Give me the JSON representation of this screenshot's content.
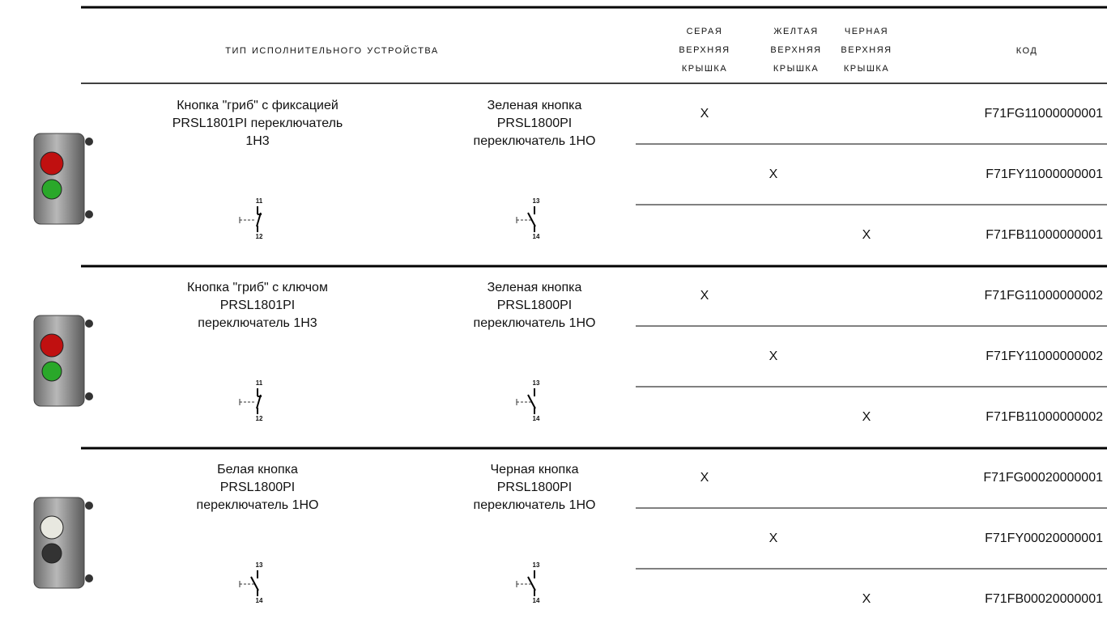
{
  "header": {
    "type": "Тип исполнительного устройства",
    "grey": [
      "Серая",
      "верхняя",
      "крышка"
    ],
    "yellow": [
      "Желтая",
      "верхняя",
      "крышка"
    ],
    "black": [
      "Черная",
      "верхняя",
      "крышка"
    ],
    "code": "Код"
  },
  "groups": [
    {
      "left": {
        "lines": [
          "Кнопка \"гриб\" с фиксацией",
          "PRSL1801PI переключатель",
          "1Н3"
        ],
        "contacts": [
          "11",
          "12"
        ]
      },
      "right": {
        "lines": [
          "Зеленая кнопка",
          "PRSL1800PI",
          "переключатель 1НО"
        ],
        "contacts": [
          "13",
          "14"
        ]
      },
      "variants": [
        {
          "grey": "X",
          "code": "F71FG11000000001"
        },
        {
          "yellow": "X",
          "code": "F71FY11000000001"
        },
        {
          "black": "X",
          "code": "F71FB11000000001"
        }
      ]
    },
    {
      "left": {
        "lines": [
          "Кнопка \"гриб\" с ключом",
          "PRSL1801PI",
          "переключатель 1Н3"
        ],
        "contacts": [
          "11",
          "12"
        ]
      },
      "right": {
        "lines": [
          "Зеленая кнопка",
          "PRSL1800PI",
          "переключатель 1НО"
        ],
        "contacts": [
          "13",
          "14"
        ]
      },
      "variants": [
        {
          "grey": "X",
          "code": "F71FG11000000002"
        },
        {
          "yellow": "X",
          "code": "F71FY11000000002"
        },
        {
          "black": "X",
          "code": "F71FB11000000002"
        }
      ]
    },
    {
      "left": {
        "lines": [
          "Белая кнопка",
          "PRSL1800PI",
          "переключатель 1НО"
        ],
        "contacts": [
          "13",
          "14"
        ]
      },
      "right": {
        "lines": [
          "Черная кнопка",
          "PRSL1800PI",
          "переключатель 1НО"
        ],
        "contacts": [
          "13",
          "14"
        ]
      },
      "variants": [
        {
          "grey": "X",
          "code": "F71FG00020000001"
        },
        {
          "yellow": "X",
          "code": "F71FY00020000001"
        },
        {
          "black": "X",
          "code": "F71FB00020000001"
        }
      ]
    }
  ]
}
